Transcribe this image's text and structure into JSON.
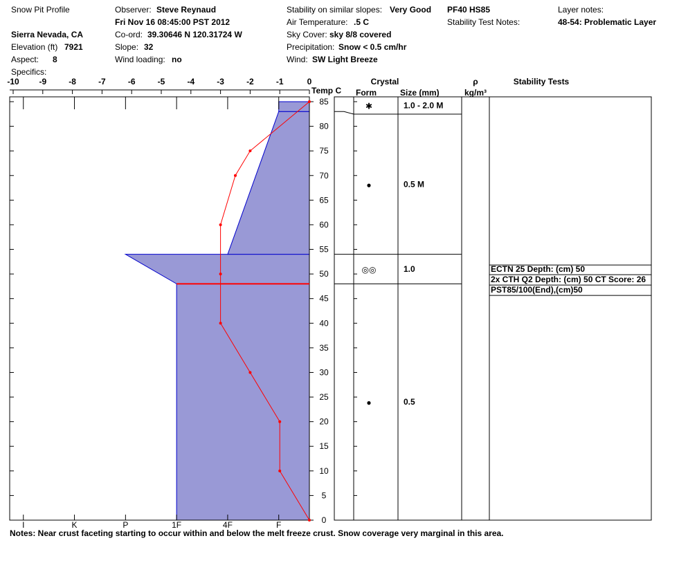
{
  "header": {
    "title": "Snow Pit Profile",
    "observer": {
      "label": "Observer:",
      "value": "Steve Reynaud"
    },
    "date": "Fri Nov 16 08:45:00 PST 2012",
    "location": "Sierra Nevada, CA",
    "coord": {
      "label": "Co-ord:",
      "value": "39.30646 N 120.31724 W"
    },
    "elevation": {
      "label": "Elevation (ft)",
      "value": "7921"
    },
    "slope": {
      "label": "Slope:",
      "value": "32"
    },
    "aspect": {
      "label": "Aspect:",
      "value": "8"
    },
    "wind_loading": {
      "label": "Wind loading:",
      "value": "no"
    },
    "specifics": {
      "label": "Specifics:"
    },
    "stability": {
      "label": "Stability on similar slopes:",
      "value": "Very Good"
    },
    "air_temp": {
      "label": "Air Temperature:",
      "value": ".5 C"
    },
    "sky": {
      "label": "Sky Cover:",
      "value": "sky 8/8 covered"
    },
    "precip": {
      "label": "Precipitation:",
      "value": "Snow < 0.5 cm/hr"
    },
    "wind": {
      "label": "Wind:",
      "value": "SW Light Breeze"
    },
    "pit_code": "PF40 HS85",
    "stability_notes": {
      "label": "Stability Test Notes:"
    },
    "layer_notes": {
      "label": "Layer notes:",
      "value": "48-54: Problematic Layer"
    },
    "notes": "Notes:  Near crust faceting starting to occur within and below the melt freeze crust.  Snow coverage very marginal in this area."
  },
  "chart_data": {
    "type": "snowpit",
    "xlabel": "Temp C",
    "xlim": [
      -10,
      0
    ],
    "xticks": [
      -10,
      -9,
      -8,
      -7,
      -6,
      -5,
      -4,
      -3,
      -2,
      -1,
      0
    ],
    "ylim": [
      0,
      85
    ],
    "yticks": [
      0,
      5,
      10,
      15,
      20,
      25,
      30,
      35,
      40,
      45,
      50,
      55,
      60,
      65,
      70,
      75,
      80,
      85
    ],
    "temperature": {
      "color": "#ff0000",
      "depths": [
        85,
        75,
        70,
        60,
        50,
        40,
        30,
        20,
        10,
        0
      ],
      "values": [
        0,
        -2,
        -2.5,
        -3,
        -3,
        -3,
        -2,
        -1,
        -1,
        0
      ]
    },
    "hardness": {
      "color": "#9999d6",
      "lim": [
        6.2,
        0.4
      ],
      "ticks": [
        {
          "value": 6,
          "label": "I"
        },
        {
          "value": 5,
          "label": "K"
        },
        {
          "value": 4,
          "label": "P"
        },
        {
          "value": 3,
          "label": "1F"
        },
        {
          "value": 2,
          "label": "4F"
        },
        {
          "value": 1,
          "label": "F"
        }
      ],
      "layers": [
        {
          "bottom": 0,
          "top": 48,
          "hardness_bottom": 3,
          "hardness_top": 3
        },
        {
          "bottom": 48,
          "top": 54,
          "hardness_bottom": 3,
          "hardness_top": 4
        },
        {
          "bottom": 54,
          "top": 83,
          "hardness_bottom": 2,
          "hardness_top": 1
        },
        {
          "bottom": 83,
          "top": 85,
          "hardness_bottom": 1,
          "hardness_top": 1
        }
      ]
    },
    "problem_depth": 48,
    "crystal": {
      "title": "Crystal",
      "form_label": "Form",
      "size_label": "Size (mm)",
      "rows": [
        {
          "top": 85,
          "bottom": 83,
          "form": "✱",
          "size": "1.0 - 2.0 M"
        },
        {
          "top": 83,
          "bottom": 54,
          "form": "●",
          "size": "0.5 M"
        },
        {
          "top": 54,
          "bottom": 48,
          "form": "◎◎",
          "size": "1.0"
        },
        {
          "top": 48,
          "bottom": 0,
          "form": "●",
          "size": "0.5"
        }
      ]
    },
    "density": {
      "title": "ρ",
      "unit": "kg/m³"
    },
    "stability_tests": {
      "title": "Stability Tests",
      "depth": 50,
      "results": [
        "ECTN 25   Depth: (cm) 50",
        "2x CTH Q2 Depth: (cm) 50 CT Score: 26",
        "PST85/100(End),(cm)50"
      ]
    }
  }
}
